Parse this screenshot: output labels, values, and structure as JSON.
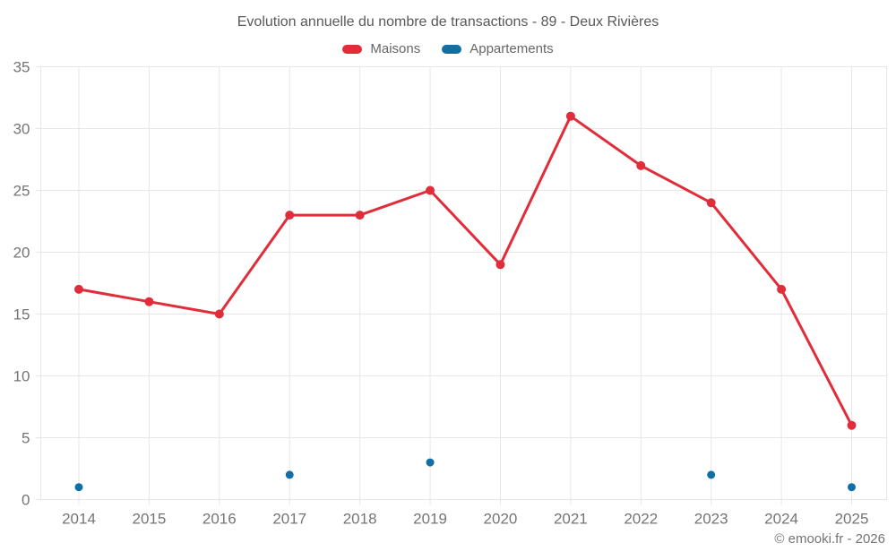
{
  "title": "Evolution annuelle du nombre de transactions - 89 - Deux Rivières",
  "legend": [
    {
      "label": "Maisons",
      "color": "#e12d39"
    },
    {
      "label": "Appartements",
      "color": "#1070a5"
    }
  ],
  "footer": "© emooki.fr - 2026",
  "chart_data": {
    "type": "line",
    "title": "Evolution annuelle du nombre de transactions - 89 - Deux Rivières",
    "categories": [
      "2014",
      "2015",
      "2016",
      "2017",
      "2018",
      "2019",
      "2020",
      "2021",
      "2022",
      "2023",
      "2024",
      "2025"
    ],
    "series": [
      {
        "name": "Maisons",
        "color": "#e12d39",
        "style": "line-with-points",
        "values": [
          17,
          16,
          15,
          23,
          23,
          25,
          19,
          31,
          27,
          24,
          17,
          6
        ]
      },
      {
        "name": "Appartements",
        "color": "#1070a5",
        "style": "points-only",
        "values": [
          1,
          null,
          null,
          2,
          null,
          3,
          null,
          null,
          null,
          2,
          null,
          1
        ]
      }
    ],
    "xlabel": "",
    "ylabel": "",
    "ylim": [
      0,
      35
    ],
    "yticks": [
      0,
      5,
      10,
      15,
      20,
      25,
      30,
      35
    ],
    "grid": true,
    "legend_position": "top"
  }
}
